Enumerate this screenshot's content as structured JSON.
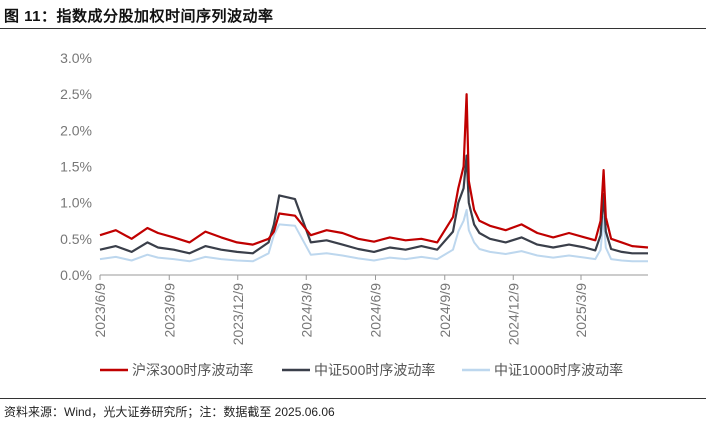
{
  "figure": {
    "title": "图 11：指数成分股加权时间序列波动率",
    "source": "资料来源：Wind，光大证券研究所；注：数据截至 2025.06.06"
  },
  "chart_data": {
    "type": "line",
    "ylim": [
      0,
      0.03
    ],
    "yticks": [
      0,
      0.005,
      0.01,
      0.015,
      0.02,
      0.025,
      0.03
    ],
    "ytick_labels": [
      "0.0%",
      "0.5%",
      "1.0%",
      "1.5%",
      "2.0%",
      "2.5%",
      "3.0%"
    ],
    "xlim": [
      "2023-06-09",
      "2025-06-06"
    ],
    "xtick_dates": [
      "2023-06-09",
      "2023-09-09",
      "2023-12-09",
      "2024-03-09",
      "2024-06-09",
      "2024-09-09",
      "2024-12-09",
      "2025-03-09"
    ],
    "xtick_labels": [
      "2023/6/9",
      "2023/9/9",
      "2023/12/9",
      "2024/3/9",
      "2024/6/9",
      "2024/9/9",
      "2024/12/9",
      "2025/3/9"
    ],
    "grid": false,
    "legend": "bottom",
    "series": [
      {
        "name": "沪深300时序波动率",
        "color": "#c00000",
        "x": [
          "2023-06-09",
          "2023-06-30",
          "2023-07-21",
          "2023-08-11",
          "2023-08-25",
          "2023-09-15",
          "2023-10-06",
          "2023-10-27",
          "2023-11-17",
          "2023-12-08",
          "2023-12-29",
          "2024-01-19",
          "2024-01-26",
          "2024-02-02",
          "2024-02-23",
          "2024-03-15",
          "2024-04-05",
          "2024-04-26",
          "2024-05-17",
          "2024-06-07",
          "2024-06-28",
          "2024-07-19",
          "2024-08-09",
          "2024-08-30",
          "2024-09-20",
          "2024-09-27",
          "2024-10-04",
          "2024-10-08",
          "2024-10-11",
          "2024-10-18",
          "2024-10-25",
          "2024-11-08",
          "2024-11-29",
          "2024-12-20",
          "2025-01-10",
          "2025-01-31",
          "2025-02-21",
          "2025-03-14",
          "2025-03-28",
          "2025-04-04",
          "2025-04-08",
          "2025-04-11",
          "2025-04-18",
          "2025-05-02",
          "2025-05-16",
          "2025-06-06"
        ],
        "values": [
          0.0055,
          0.0062,
          0.005,
          0.0065,
          0.0058,
          0.0052,
          0.0045,
          0.006,
          0.0052,
          0.0045,
          0.0042,
          0.005,
          0.006,
          0.0085,
          0.0082,
          0.0055,
          0.0062,
          0.0058,
          0.005,
          0.0046,
          0.0052,
          0.0048,
          0.005,
          0.0045,
          0.008,
          0.012,
          0.015,
          0.025,
          0.013,
          0.009,
          0.0075,
          0.0068,
          0.0062,
          0.007,
          0.0058,
          0.0052,
          0.0058,
          0.0052,
          0.0048,
          0.0075,
          0.0145,
          0.008,
          0.005,
          0.0045,
          0.004,
          0.0038
        ]
      },
      {
        "name": "中证500时序波动率",
        "color": "#3a3f4a",
        "x": [
          "2023-06-09",
          "2023-06-30",
          "2023-07-21",
          "2023-08-11",
          "2023-08-25",
          "2023-09-15",
          "2023-10-06",
          "2023-10-27",
          "2023-11-17",
          "2023-12-08",
          "2023-12-29",
          "2024-01-19",
          "2024-01-26",
          "2024-02-02",
          "2024-02-23",
          "2024-03-15",
          "2024-04-05",
          "2024-04-26",
          "2024-05-17",
          "2024-06-07",
          "2024-06-28",
          "2024-07-19",
          "2024-08-09",
          "2024-08-30",
          "2024-09-20",
          "2024-09-27",
          "2024-10-04",
          "2024-10-08",
          "2024-10-11",
          "2024-10-18",
          "2024-10-25",
          "2024-11-08",
          "2024-11-29",
          "2024-12-20",
          "2025-01-10",
          "2025-01-31",
          "2025-02-21",
          "2025-03-14",
          "2025-03-28",
          "2025-04-04",
          "2025-04-08",
          "2025-04-11",
          "2025-04-18",
          "2025-05-02",
          "2025-05-16",
          "2025-06-06"
        ],
        "values": [
          0.0035,
          0.004,
          0.0032,
          0.0045,
          0.0038,
          0.0035,
          0.003,
          0.004,
          0.0035,
          0.0032,
          0.003,
          0.0045,
          0.007,
          0.011,
          0.0105,
          0.0045,
          0.0048,
          0.0042,
          0.0036,
          0.0032,
          0.0038,
          0.0035,
          0.004,
          0.0035,
          0.006,
          0.01,
          0.012,
          0.0165,
          0.01,
          0.007,
          0.0058,
          0.005,
          0.0045,
          0.0052,
          0.0042,
          0.0038,
          0.0042,
          0.0038,
          0.0034,
          0.0055,
          0.0112,
          0.006,
          0.0036,
          0.0032,
          0.003,
          0.003
        ]
      },
      {
        "name": "中证1000时序波动率",
        "color": "#bdd7ee",
        "x": [
          "2023-06-09",
          "2023-06-30",
          "2023-07-21",
          "2023-08-11",
          "2023-08-25",
          "2023-09-15",
          "2023-10-06",
          "2023-10-27",
          "2023-11-17",
          "2023-12-08",
          "2023-12-29",
          "2024-01-19",
          "2024-01-26",
          "2024-02-02",
          "2024-02-23",
          "2024-03-15",
          "2024-04-05",
          "2024-04-26",
          "2024-05-17",
          "2024-06-07",
          "2024-06-28",
          "2024-07-19",
          "2024-08-09",
          "2024-08-30",
          "2024-09-20",
          "2024-09-27",
          "2024-10-04",
          "2024-10-08",
          "2024-10-11",
          "2024-10-18",
          "2024-10-25",
          "2024-11-08",
          "2024-11-29",
          "2024-12-20",
          "2025-01-10",
          "2025-01-31",
          "2025-02-21",
          "2025-03-14",
          "2025-03-28",
          "2025-04-04",
          "2025-04-08",
          "2025-04-11",
          "2025-04-18",
          "2025-05-02",
          "2025-05-16",
          "2025-06-06"
        ],
        "values": [
          0.0022,
          0.0025,
          0.002,
          0.0028,
          0.0024,
          0.0022,
          0.0019,
          0.0025,
          0.0022,
          0.002,
          0.0019,
          0.003,
          0.0055,
          0.007,
          0.0068,
          0.0028,
          0.003,
          0.0027,
          0.0023,
          0.002,
          0.0024,
          0.0022,
          0.0025,
          0.0022,
          0.0035,
          0.006,
          0.0075,
          0.009,
          0.0062,
          0.0045,
          0.0036,
          0.0032,
          0.0029,
          0.0033,
          0.0027,
          0.0024,
          0.0027,
          0.0024,
          0.0022,
          0.0035,
          0.008,
          0.0038,
          0.0022,
          0.002,
          0.0019,
          0.0019
        ]
      }
    ]
  }
}
